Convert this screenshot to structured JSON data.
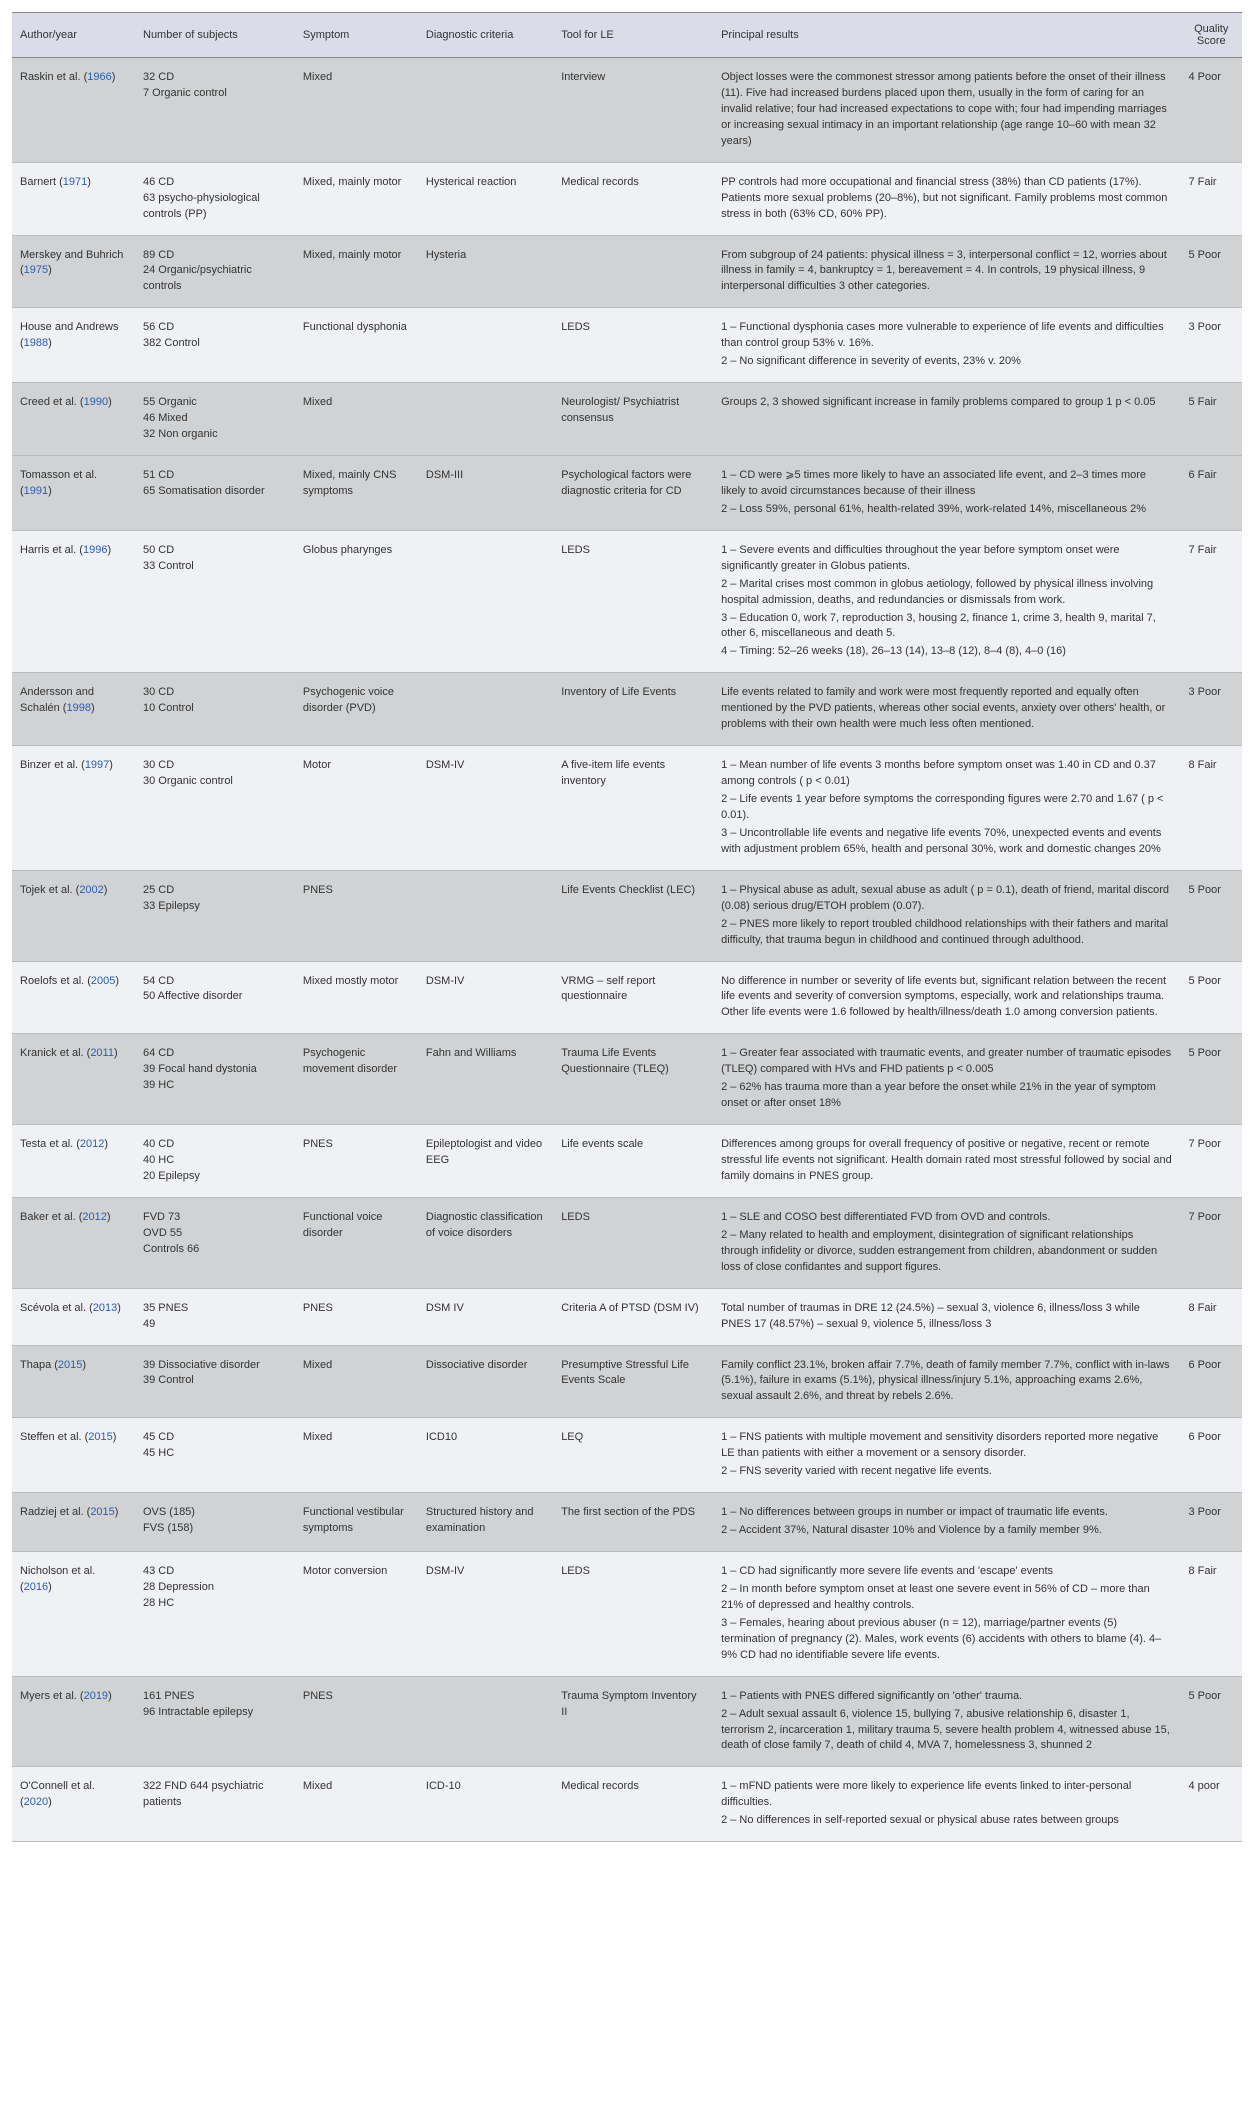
{
  "columns": [
    "Author/year",
    "Number of subjects",
    "Symptom",
    "Diagnostic criteria",
    "Tool for LE",
    "Principal results",
    "Quality Score"
  ],
  "rows": [
    {
      "shade": true,
      "author_pre": "Raskin et al. (",
      "author_link": "1966",
      "author_post": ")",
      "subjects": [
        "32 CD",
        "7 Organic control"
      ],
      "symptom": "Mixed",
      "criteria": "",
      "tool": "Interview",
      "results": [
        "Object losses were the commonest stressor among patients before the onset of their illness (11). Five had increased burdens placed upon them, usually in the form of caring for an invalid relative; four had increased expectations to cope with; four had impending marriages or increasing sexual intimacy in an important relationship (age range 10–60 with mean 32 years)"
      ],
      "quality": "4 Poor"
    },
    {
      "shade": false,
      "author_pre": "Barnert (",
      "author_link": "1971",
      "author_post": ")",
      "subjects": [
        "46 CD",
        "63 psycho-physiological controls (PP)"
      ],
      "symptom": "Mixed, mainly motor",
      "criteria": "Hysterical reaction",
      "tool": "Medical records",
      "results": [
        "PP controls had more occupational and financial stress (38%) than CD patients (17%). Patients more sexual problems (20–8%), but not significant. Family problems most common stress in both (63% CD, 60% PP)."
      ],
      "quality": "7 Fair"
    },
    {
      "shade": true,
      "author_pre": "Merskey and Buhrich (",
      "author_link": "1975",
      "author_post": ")",
      "subjects": [
        "89 CD",
        "24 Organic/psychiatric controls"
      ],
      "symptom": "Mixed, mainly motor",
      "criteria": "Hysteria",
      "tool": "",
      "results": [
        "From subgroup of 24 patients: physical illness = 3, interpersonal conflict = 12, worries about illness in family = 4, bankruptcy = 1, bereavement = 4. In controls, 19 physical illness, 9 interpersonal difficulties 3 other categories."
      ],
      "quality": "5 Poor"
    },
    {
      "shade": false,
      "author_pre": "House and Andrews (",
      "author_link": "1988",
      "author_post": ")",
      "subjects": [
        "56 CD",
        "382 Control"
      ],
      "symptom": "Functional dysphonia",
      "criteria": "",
      "tool": "LEDS",
      "results": [
        "1 – Functional dysphonia cases more vulnerable to experience of life events and difficulties than control group 53% v. 16%.",
        "2 – No significant difference in severity of events, 23% v. 20%"
      ],
      "quality": "3 Poor"
    },
    {
      "shade": true,
      "author_pre": "Creed et al. (",
      "author_link": "1990",
      "author_post": ")",
      "subjects": [
        "55 Organic",
        "46 Mixed",
        "32 Non organic"
      ],
      "symptom": "Mixed",
      "criteria": "",
      "tool": "Neurologist/ Psychiatrist consensus",
      "results": [
        "Groups 2, 3 showed significant increase in family problems compared to group 1 p < 0.05"
      ],
      "quality": "5 Fair"
    },
    {
      "shade": true,
      "author_pre": "Tomasson et al. (",
      "author_link": "1991",
      "author_post": ")",
      "subjects": [
        "51 CD",
        "65 Somatisation disorder"
      ],
      "symptom": "Mixed, mainly CNS symptoms",
      "criteria": "DSM-III",
      "tool": "Psychological factors were diagnostic criteria for CD",
      "results": [
        "1 – CD were ⩾5 times more likely to have an associated life event, and 2–3 times more likely to avoid circumstances because of their illness",
        "2 – Loss 59%, personal 61%, health-related 39%, work-related 14%, miscellaneous 2%"
      ],
      "quality": "6 Fair"
    },
    {
      "shade": false,
      "author_pre": "Harris et al. (",
      "author_link": "1996",
      "author_post": ")",
      "subjects": [
        "50 CD",
        "33 Control"
      ],
      "symptom": "Globus pharynges",
      "criteria": "",
      "tool": "LEDS",
      "results": [
        "1 – Severe events and difficulties throughout the year before symptom onset were significantly greater in Globus patients.",
        "2 – Marital crises most common in globus aetiology, followed by physical illness involving hospital admission, deaths, and redundancies or dismissals from work.",
        "3 – Education 0, work 7, reproduction 3, housing 2, finance 1, crime 3, health 9, marital 7, other 6, miscellaneous and death 5.",
        "4 – Timing: 52–26 weeks (18), 26–13 (14), 13–8 (12), 8–4 (8), 4–0 (16)"
      ],
      "quality": "7 Fair"
    },
    {
      "shade": true,
      "author_pre": "Andersson and Schalén (",
      "author_link": "1998",
      "author_post": ")",
      "subjects": [
        "30 CD",
        "10 Control"
      ],
      "symptom": "Psychogenic voice disorder (PVD)",
      "criteria": "",
      "tool": "Inventory of Life Events",
      "results": [
        "Life events related to family and work were most frequently reported and equally often mentioned by the PVD patients, whereas other social events, anxiety over others' health, or problems with their own health were much less often mentioned."
      ],
      "quality": "3 Poor"
    },
    {
      "shade": false,
      "author_pre": "Binzer et al. (",
      "author_link": "1997",
      "author_post": ")",
      "subjects": [
        "30 CD",
        "30 Organic control"
      ],
      "symptom": "Motor",
      "criteria": "DSM-IV",
      "tool": "A five-item life events inventory",
      "results": [
        "1 – Mean number of life events 3 months before symptom onset was 1.40 in CD and 0.37 among controls ( p < 0.01)",
        "2 – Life events 1 year before symptoms the corresponding figures were 2.70 and 1.67 ( p < 0.01).",
        "3 – Uncontrollable life events and negative life events 70%, unexpected events and events with adjustment problem 65%, health and personal 30%, work and domestic changes 20%"
      ],
      "quality": "8 Fair"
    },
    {
      "shade": true,
      "author_pre": "Tojek et al. (",
      "author_link": "2002",
      "author_post": ")",
      "subjects": [
        "25 CD",
        "33 Epilepsy"
      ],
      "symptom": "PNES",
      "criteria": "",
      "tool": "Life Events Checklist (LEC)",
      "results": [
        "1 – Physical abuse as adult, sexual abuse as adult ( p = 0.1), death of friend, marital discord (0.08) serious drug/ETOH problem (0.07).",
        "2 – PNES more likely to report troubled childhood relationships with their fathers and marital difficulty, that trauma begun in childhood and continued through adulthood."
      ],
      "quality": "5 Poor"
    },
    {
      "shade": false,
      "author_pre": "Roelofs et al. (",
      "author_link": "2005",
      "author_post": ")",
      "subjects": [
        "54 CD",
        "50 Affective disorder"
      ],
      "symptom": "Mixed mostly motor",
      "criteria": "DSM-IV",
      "tool": "VRMG – self report questionnaire",
      "results": [
        "No difference in number or severity of life events but, significant relation between the recent life events and severity of conversion symptoms, especially, work and relationships trauma. Other life events were 1.6 followed by health/illness/death 1.0 among conversion patients."
      ],
      "quality": "5 Poor"
    },
    {
      "shade": true,
      "author_pre": "Kranick et al. (",
      "author_link": "2011",
      "author_post": ")",
      "subjects": [
        "64 CD",
        "39 Focal hand dystonia",
        "39 HC"
      ],
      "symptom": "Psychogenic movement disorder",
      "criteria": "Fahn and Williams",
      "tool": "Trauma Life Events Questionnaire (TLEQ)",
      "results": [
        "1 – Greater fear associated with traumatic events, and greater number of traumatic episodes (TLEQ) compared with HVs and FHD patients p < 0.005",
        "2 – 62% has trauma more than a year before the onset while 21% in the year of symptom onset or after onset 18%"
      ],
      "quality": "5 Poor"
    },
    {
      "shade": false,
      "author_pre": "Testa et al. (",
      "author_link": "2012",
      "author_post": ")",
      "subjects": [
        "40 CD",
        "40 HC",
        "20 Epilepsy"
      ],
      "symptom": "PNES",
      "criteria": "Epileptologist and video EEG",
      "tool": "Life events scale",
      "results": [
        "Differences among groups for overall frequency of positive or negative, recent or remote stressful life events not significant. Health domain rated most stressful followed by social and family domains in PNES group."
      ],
      "quality": "7 Poor"
    },
    {
      "shade": true,
      "author_pre": "Baker et al. (",
      "author_link": "2012",
      "author_post": ")",
      "subjects": [
        "FVD 73",
        "OVD 55",
        "Controls 66"
      ],
      "symptom": "Functional voice disorder",
      "criteria": "Diagnostic classification of voice disorders",
      "tool": "LEDS",
      "results": [
        "1 – SLE and COSO best differentiated FVD from OVD and controls.",
        "2 – Many related to health and employment, disintegration of significant relationships through infidelity or divorce, sudden estrangement from children, abandonment or sudden loss of close confidantes and support figures."
      ],
      "quality": "7 Poor"
    },
    {
      "shade": false,
      "author_pre": "Scévola et al. (",
      "author_link": "2013",
      "author_post": ")",
      "subjects": [
        "35 PNES",
        "49"
      ],
      "symptom": "PNES",
      "criteria": "DSM IV",
      "tool": "Criteria A of PTSD (DSM IV)",
      "results": [
        "Total number of traumas in DRE 12 (24.5%) – sexual 3, violence 6, illness/loss 3 while PNES 17 (48.57%) – sexual 9, violence 5, illness/loss 3"
      ],
      "quality": "8 Fair"
    },
    {
      "shade": true,
      "author_pre": "Thapa (",
      "author_link": "2015",
      "author_post": ")",
      "subjects": [
        "39 Dissociative disorder",
        "39 Control"
      ],
      "symptom": "Mixed",
      "criteria": "Dissociative disorder",
      "tool": "Presumptive Stressful Life Events Scale",
      "results": [
        "Family conflict 23.1%, broken affair 7.7%, death of family member 7.7%, conflict with in-laws (5.1%), failure in exams (5.1%), physical illness/injury 5.1%, approaching exams 2.6%, sexual assault 2.6%, and threat by rebels 2.6%."
      ],
      "quality": "6 Poor"
    },
    {
      "shade": false,
      "author_pre": "Steffen et al. (",
      "author_link": "2015",
      "author_post": ")",
      "subjects": [
        "45 CD",
        "45 HC"
      ],
      "symptom": "Mixed",
      "criteria": "ICD10",
      "tool": "LEQ",
      "results": [
        "1 – FNS patients with multiple movement and sensitivity disorders reported more negative LE than patients with either a movement or a sensory disorder.",
        "2 – FNS severity varied with recent negative life events."
      ],
      "quality": "6 Poor"
    },
    {
      "shade": true,
      "author_pre": "Radziej et al. (",
      "author_link": "2015",
      "author_post": ")",
      "subjects": [
        "OVS (185)",
        "FVS (158)"
      ],
      "symptom": "Functional vestibular symptoms",
      "criteria": "Structured history and examination",
      "tool": "The first section of the PDS",
      "results": [
        "1 – No differences between groups in number or impact of traumatic life events.",
        "2 – Accident 37%, Natural disaster 10% and Violence by a family member 9%."
      ],
      "quality": "3 Poor"
    },
    {
      "shade": false,
      "author_pre": "Nicholson et al. (",
      "author_link": "2016",
      "author_post": ")",
      "subjects": [
        "43 CD",
        "28 Depression",
        "28 HC"
      ],
      "symptom": "Motor conversion",
      "criteria": "DSM-IV",
      "tool": "LEDS",
      "results": [
        "1 – CD had significantly more severe life events and 'escape' events",
        "2 – In month before symptom onset at least one severe event in 56% of CD – more than 21% of depressed and healthy controls.",
        "3 – Females, hearing about previous abuser (n = 12), marriage/partner events (5) termination of pregnancy (2). Males, work events (6) accidents with others to blame (4). 4–9% CD had no identifiable severe life events."
      ],
      "quality": "8 Fair"
    },
    {
      "shade": true,
      "author_pre": "Myers et al. (",
      "author_link": "2019",
      "author_post": ")",
      "subjects": [
        "161 PNES",
        "96 Intractable epilepsy"
      ],
      "symptom": "PNES",
      "criteria": "",
      "tool": "Trauma Symptom Inventory II",
      "results": [
        "1 – Patients with PNES differed significantly on 'other' trauma.",
        "2 – Adult sexual assault 6, violence 15, bullying 7, abusive relationship 6, disaster 1, terrorism 2, incarceration 1, military trauma 5, severe health problem 4, witnessed abuse 15, death of close family 7, death of child 4, MVA 7, homelessness 3, shunned 2"
      ],
      "quality": "5 Poor"
    },
    {
      "shade": false,
      "author_pre": "O'Connell et al. (",
      "author_link": "2020",
      "author_post": ")",
      "subjects": [
        "322 FND 644 psychiatric patients"
      ],
      "symptom": "Mixed",
      "criteria": "ICD-10",
      "tool": "Medical records",
      "results": [
        "1 – mFND patients were more likely to experience life events linked to inter-personal difficulties.",
        "2 – No differences in self-reported sexual or physical abuse rates between groups"
      ],
      "quality": "4 poor"
    }
  ]
}
